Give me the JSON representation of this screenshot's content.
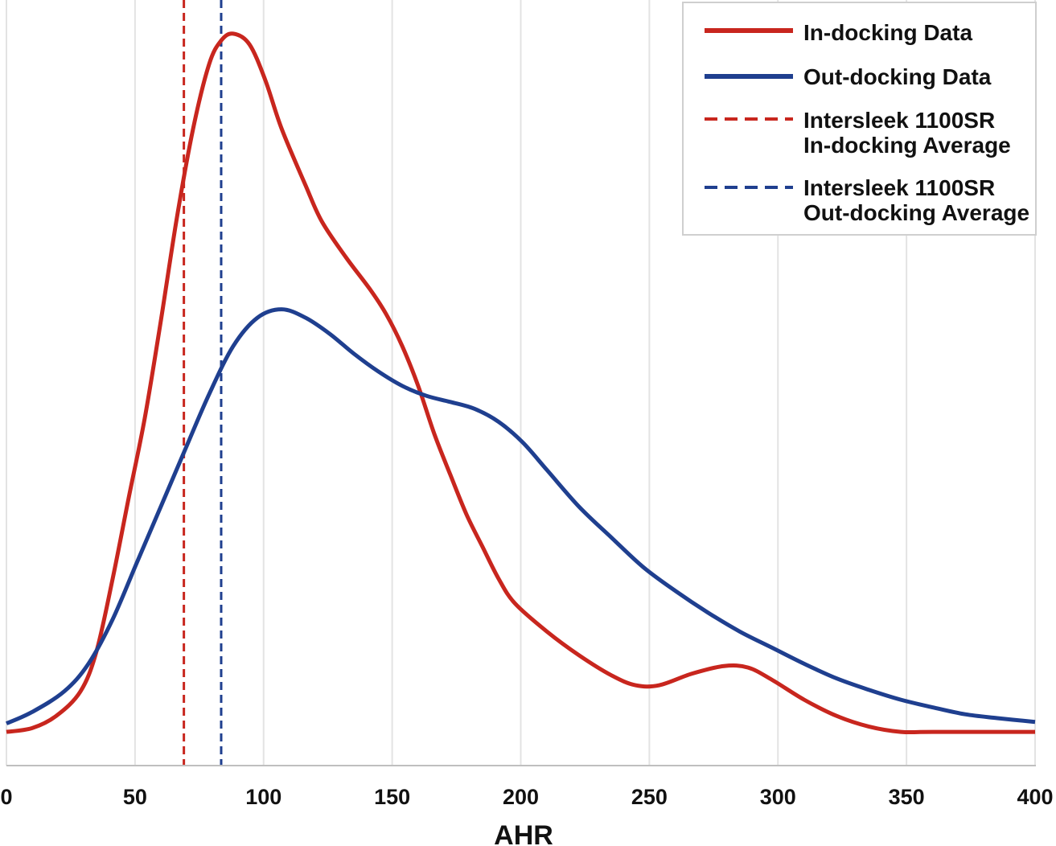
{
  "chart_data": {
    "type": "line",
    "title": "",
    "xlabel": "AHR",
    "ylabel": "",
    "xlim": [
      0,
      400
    ],
    "ylim": [
      0,
      100
    ],
    "grid": {
      "vertical": true,
      "horizontal": false
    },
    "x_ticks": [
      "0",
      "50",
      "100",
      "150",
      "200",
      "250",
      "300",
      "350",
      "400"
    ],
    "legend_position": "top-right",
    "series": [
      {
        "name": "In-docking Data",
        "color": "#c8261e",
        "style": "solid",
        "x": [
          0,
          10,
          19.4,
          28.8,
          35,
          41.3,
          47.5,
          53.8,
          60,
          66.3,
          72.6,
          78.8,
          83.5,
          88.2,
          94.5,
          100.7,
          107,
          116.3,
          122.6,
          132,
          141.4,
          147.6,
          153.9,
          160.1,
          166.4,
          172.6,
          178.9,
          185.1,
          191.4,
          197.7,
          210.2,
          222.7,
          235.2,
          244.6,
          253.9,
          266.5,
          279,
          288.4,
          297.7,
          310.2,
          322.7,
          335.3,
          347.8,
          360.3,
          400
        ],
        "y": [
          4.4,
          4.9,
          6.5,
          9.7,
          14.9,
          24.4,
          34.9,
          45.4,
          58,
          71.6,
          83.2,
          91.6,
          94.7,
          95.6,
          94.2,
          89.5,
          83.2,
          75.8,
          71.1,
          66.4,
          62.2,
          59,
          54.8,
          49.6,
          43.3,
          38,
          32.8,
          28.6,
          24.4,
          21.2,
          17.5,
          14.4,
          11.8,
          10.5,
          10.5,
          12,
          13,
          12.8,
          11.2,
          8.6,
          6.5,
          5.1,
          4.4,
          4.4,
          4.4
        ]
      },
      {
        "name": "Out-docking Data",
        "color": "#1f3f8f",
        "style": "solid",
        "x": [
          0,
          10,
          22.5,
          31.9,
          41.3,
          50.7,
          60,
          69.4,
          78.8,
          88.2,
          97.6,
          107,
          116.3,
          125.7,
          135.1,
          144.5,
          153.9,
          163.3,
          172.6,
          182,
          191.4,
          200.8,
          210.2,
          222.7,
          235.2,
          247.7,
          260.2,
          272.7,
          285.2,
          297.7,
          310.2,
          322.7,
          335.3,
          347.8,
          360.3,
          372.8,
          385.3,
          400
        ],
        "y": [
          5.5,
          7,
          9.7,
          13.3,
          19.1,
          26.5,
          33.8,
          41.2,
          48.5,
          54.8,
          58.5,
          59.6,
          58.5,
          56.4,
          53.8,
          51.5,
          49.6,
          48.3,
          47.5,
          46.6,
          44.9,
          42.2,
          38.6,
          33.8,
          29.8,
          25.9,
          22.8,
          20,
          17.5,
          15.4,
          13.3,
          11.4,
          9.9,
          8.6,
          7.6,
          6.7,
          6.2,
          5.7
        ]
      }
    ],
    "reference_lines": [
      {
        "name_line1": "Intersleek 1100SR",
        "name_line2": "In-docking Average",
        "x": 69,
        "color": "#c8261e",
        "style": "dashed"
      },
      {
        "name_line1": "Intersleek 1100SR",
        "name_line2": "Out-docking Average",
        "x": 83.5,
        "color": "#1f3f8f",
        "style": "dashed"
      }
    ]
  }
}
